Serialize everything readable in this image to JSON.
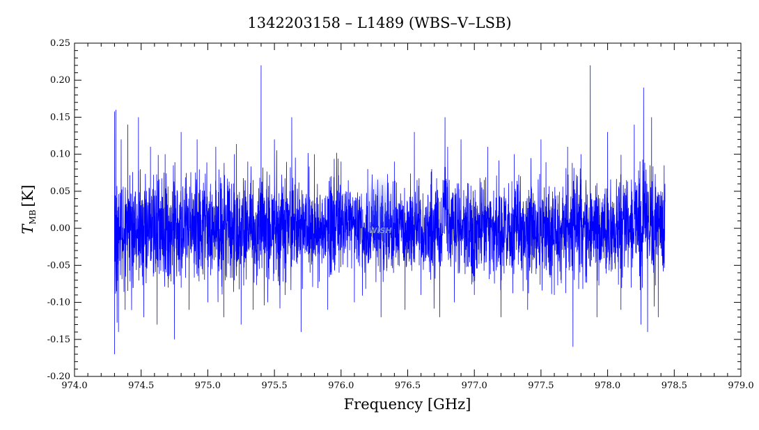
{
  "chart_data": {
    "type": "line",
    "title": "1342203158 – L1489 (WBS–V–LSB)",
    "xlabel": "Frequency [GHz]",
    "ylabel_main": "T",
    "ylabel_sub": "MB",
    "ylabel_unit": "[K]",
    "xlim": [
      974.0,
      979.0
    ],
    "ylim": [
      -0.2,
      0.25
    ],
    "x_ticks": [
      "974.0",
      "974.5",
      "975.0",
      "975.5",
      "976.0",
      "976.5",
      "977.0",
      "977.5",
      "978.0",
      "978.5",
      "979.0"
    ],
    "y_ticks": [
      "-0.20",
      "-0.15",
      "-0.10",
      "-0.05",
      "0.00",
      "0.05",
      "0.10",
      "0.15",
      "0.20",
      "0.25"
    ],
    "line_color": "#0000ff",
    "watermark": "WISH",
    "series": [
      {
        "x": [
          974.3,
          974.31,
          974.33,
          974.35,
          974.38,
          974.4,
          974.44,
          974.48,
          974.52,
          974.57,
          974.62,
          974.68,
          974.75,
          974.8,
          974.86,
          974.92,
          975.0,
          975.06,
          975.12,
          975.2,
          975.25,
          975.3,
          975.34,
          975.4,
          975.45,
          975.5,
          975.58,
          975.63,
          975.7,
          975.8,
          975.9,
          976.0,
          976.1,
          976.2,
          976.3,
          976.4,
          976.48,
          976.55,
          976.6,
          976.68,
          976.74,
          976.78,
          976.8,
          976.85,
          976.9,
          977.0,
          977.1,
          977.2,
          977.3,
          977.4,
          977.5,
          977.6,
          977.7,
          977.74,
          977.8,
          977.87,
          977.92,
          978.0,
          978.1,
          978.2,
          978.25,
          978.27,
          978.3,
          978.33,
          978.38,
          978.43
        ],
        "y": [
          -0.17,
          0.16,
          -0.14,
          0.12,
          -0.11,
          0.14,
          -0.08,
          0.15,
          -0.12,
          0.11,
          -0.13,
          0.1,
          -0.15,
          0.13,
          -0.11,
          0.12,
          -0.1,
          0.11,
          -0.12,
          0.1,
          -0.13,
          0.09,
          -0.11,
          0.22,
          -0.1,
          0.12,
          -0.09,
          0.15,
          -0.14,
          0.1,
          -0.11,
          0.09,
          -0.1,
          0.08,
          -0.12,
          0.09,
          -0.11,
          0.13,
          -0.09,
          0.08,
          -0.12,
          0.15,
          0.11,
          -0.1,
          0.12,
          -0.09,
          0.11,
          -0.12,
          0.1,
          -0.11,
          0.12,
          -0.09,
          0.11,
          -0.16,
          0.1,
          0.22,
          -0.12,
          0.13,
          -0.11,
          0.14,
          -0.13,
          0.19,
          -0.14,
          0.15,
          -0.12,
          0.06
        ]
      }
    ]
  }
}
